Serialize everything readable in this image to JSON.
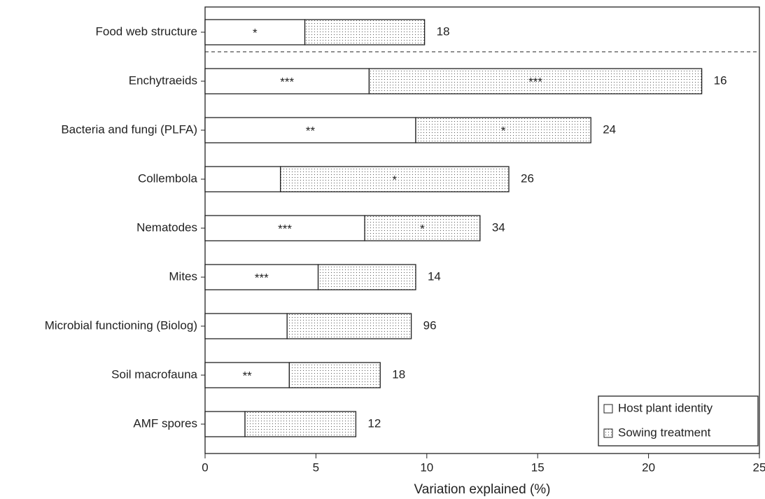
{
  "chart_data": {
    "type": "bar",
    "orientation": "horizontal",
    "stacked": true,
    "xlabel": "Variation explained (%)",
    "categories": [
      "Food web structure",
      "Enchytraeids",
      "Bacteria and fungi (PLFA)",
      "Collembola",
      "Nematodes",
      "Mites",
      "Microbial functioning (Biolog)",
      "Soil macrofauna",
      "AMF spores"
    ],
    "series": [
      {
        "name": "Host plant identity",
        "color": "#ffffff",
        "pattern": "none",
        "values": [
          4.5,
          7.4,
          9.5,
          3.4,
          7.2,
          5.1,
          3.7,
          3.8,
          1.8
        ],
        "significance": [
          "*",
          "***",
          "**",
          null,
          "***",
          "***",
          null,
          "**",
          null
        ]
      },
      {
        "name": "Sowing treatment",
        "color": "#ffffff",
        "pattern": "dots",
        "values": [
          5.4,
          15.0,
          7.9,
          10.3,
          5.2,
          4.4,
          5.6,
          4.1,
          5.0
        ],
        "significance": [
          null,
          "***",
          "*",
          "*",
          "*",
          null,
          null,
          null,
          null
        ]
      }
    ],
    "n_labels": [
      "18",
      "16",
      "24",
      "26",
      "34",
      "14",
      "96",
      "18",
      "12"
    ],
    "xlim": [
      0,
      25
    ],
    "xticks": [
      0,
      5,
      10,
      15,
      20,
      25
    ],
    "legend": "lower-right"
  }
}
